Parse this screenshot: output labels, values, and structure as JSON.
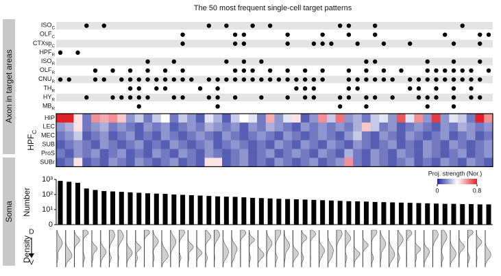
{
  "chart_data": {
    "type": "pattern-matrix",
    "title": "The 50 most frequent single-cell target patterns",
    "side_labels": {
      "axon": "Axon in target areas",
      "soma": "Soma"
    },
    "patterns": {
      "rows": [
        {
          "name": "ISO",
          "sub": "C",
          "cols": [
            3,
            5,
            17,
            19,
            22,
            24,
            32,
            33,
            36,
            46
          ]
        },
        {
          "name": "OLF",
          "sub": "C",
          "cols": [
            14,
            20,
            21,
            26,
            30,
            33,
            36,
            44,
            48,
            49
          ]
        },
        {
          "name": "CTXsp",
          "sub": "C",
          "cols": [
            14,
            20,
            21,
            26,
            29,
            30,
            31,
            34,
            37,
            40,
            45,
            48
          ]
        },
        {
          "name": "HPF",
          "sub": "R",
          "cols": [
            0,
            2
          ]
        },
        {
          "name": "ISO",
          "sub": "R",
          "cols": [
            10,
            13,
            19,
            21,
            23,
            35,
            36,
            42,
            45,
            48
          ]
        },
        {
          "name": "OLF",
          "sub": "R",
          "cols": [
            4,
            6,
            8,
            10,
            12,
            14,
            20,
            21,
            22,
            24,
            26,
            28,
            30,
            33,
            35,
            37,
            39,
            42,
            43,
            44,
            45,
            46,
            47,
            49
          ]
        },
        {
          "name": "CNU",
          "sub": "R",
          "cols": [
            0,
            1,
            4,
            5,
            7,
            8,
            9,
            10,
            11,
            12,
            13,
            14,
            15,
            17,
            18,
            19,
            20,
            21,
            22,
            23,
            24,
            25,
            26,
            27,
            28,
            29,
            30,
            33,
            34,
            35,
            36,
            37,
            38,
            40,
            41,
            42,
            43,
            44,
            45,
            46,
            47,
            48
          ]
        },
        {
          "name": "TH",
          "sub": "R",
          "cols": [
            8,
            9,
            11,
            12,
            16,
            18,
            27,
            28,
            29,
            33,
            34,
            40,
            41,
            43,
            45,
            47
          ]
        },
        {
          "name": "HY",
          "sub": "R",
          "cols": [
            3,
            6,
            7,
            8,
            9,
            10,
            13,
            14,
            17,
            18,
            20,
            23,
            26,
            28,
            29,
            32,
            33,
            35,
            36,
            38,
            41,
            42,
            43,
            45,
            47,
            48
          ]
        },
        {
          "name": "MB",
          "sub": "R",
          "cols": [
            9,
            18,
            32,
            35,
            42,
            45
          ]
        }
      ]
    },
    "heatmap": {
      "title": "HPF",
      "title_sub": "C",
      "colorbar_label": "Proj. strength (Nor.)",
      "clim": [
        0,
        0.8
      ],
      "cticks": [
        0,
        0.8
      ],
      "rows": [
        {
          "name": "HIP",
          "values": [
            0.8,
            0.8,
            0.45,
            0.15,
            0.6,
            0.55,
            0.6,
            0.5,
            0.2,
            0.3,
            0.15,
            0.3,
            0.4,
            0.15,
            0.3,
            0.2,
            0.1,
            0.35,
            0.25,
            0.1,
            0.3,
            0.4,
            0.35,
            0.15,
            0.55,
            0.2,
            0.35,
            0.45,
            0.1,
            0.2,
            0.6,
            0.3,
            0.65,
            0.2,
            0.25,
            0.15,
            0.3,
            0.35,
            0.2,
            0.7,
            0.35,
            0.6,
            0.2,
            0.75,
            0.2,
            0.35,
            0.3,
            0.15,
            0.8,
            0.6
          ]
        },
        {
          "name": "LEC",
          "values": [
            0.2,
            0.25,
            0.45,
            0.15,
            0.2,
            0.25,
            0.15,
            0.2,
            0.15,
            0.1,
            0.2,
            0.15,
            0.2,
            0.1,
            0.15,
            0.2,
            0.15,
            0.25,
            0.2,
            0.15,
            0.2,
            0.1,
            0.2,
            0.15,
            0.25,
            0.2,
            0.15,
            0.1,
            0.2,
            0.15,
            0.2,
            0.15,
            0.2,
            0.15,
            0.25,
            0.5,
            0.3,
            0.15,
            0.2,
            0.1,
            0.15,
            0.2,
            0.15,
            0.1,
            0.2,
            0.15,
            0.25,
            0.2,
            0.15,
            0.2
          ]
        },
        {
          "name": "MEC",
          "values": [
            0.15,
            0.2,
            0.3,
            0.1,
            0.15,
            0.2,
            0.1,
            0.15,
            0.2,
            0.1,
            0.15,
            0.1,
            0.2,
            0.15,
            0.1,
            0.15,
            0.2,
            0.15,
            0.1,
            0.2,
            0.15,
            0.1,
            0.15,
            0.2,
            0.15,
            0.1,
            0.2,
            0.15,
            0.1,
            0.15,
            0.2,
            0.15,
            0.1,
            0.2,
            0.3,
            0.15,
            0.1,
            0.2,
            0.15,
            0.1,
            0.2,
            0.15,
            0.1,
            0.15,
            0.2,
            0.1,
            0.15,
            0.2,
            0.1,
            0.15
          ]
        },
        {
          "name": "SUB",
          "values": [
            0.1,
            0.15,
            0.2,
            0.15,
            0.1,
            0.2,
            0.15,
            0.1,
            0.15,
            0.2,
            0.1,
            0.15,
            0.1,
            0.2,
            0.15,
            0.1,
            0.15,
            0.2,
            0.1,
            0.15,
            0.2,
            0.15,
            0.1,
            0.15,
            0.1,
            0.2,
            0.15,
            0.1,
            0.2,
            0.15,
            0.1,
            0.2,
            0.15,
            0.1,
            0.2,
            0.15,
            0.1,
            0.15,
            0.2,
            0.1,
            0.15,
            0.1,
            0.2,
            0.15,
            0.1,
            0.2,
            0.15,
            0.1,
            0.15,
            0.2
          ]
        },
        {
          "name": "ProS",
          "values": [
            0.15,
            0.1,
            0.2,
            0.15,
            0.2,
            0.1,
            0.15,
            0.2,
            0.1,
            0.15,
            0.1,
            0.2,
            0.15,
            0.1,
            0.2,
            0.15,
            0.1,
            0.2,
            0.15,
            0.1,
            0.15,
            0.2,
            0.1,
            0.15,
            0.2,
            0.1,
            0.15,
            0.2,
            0.15,
            0.1,
            0.2,
            0.15,
            0.1,
            0.25,
            0.15,
            0.1,
            0.2,
            0.15,
            0.1,
            0.2,
            0.15,
            0.1,
            0.2,
            0.15,
            0.1,
            0.15,
            0.2,
            0.1,
            0.15,
            0.2
          ]
        },
        {
          "name": "SUBr",
          "values": [
            0.1,
            0.15,
            0.45,
            0.1,
            0.15,
            0.1,
            0.2,
            0.15,
            0.1,
            0.2,
            0.15,
            0.1,
            0.15,
            0.2,
            0.1,
            0.15,
            0.1,
            0.45,
            0.45,
            0.1,
            0.15,
            0.2,
            0.1,
            0.15,
            0.1,
            0.2,
            0.15,
            0.1,
            0.15,
            0.2,
            0.1,
            0.15,
            0.2,
            0.6,
            0.15,
            0.1,
            0.2,
            0.15,
            0.1,
            0.15,
            0.2,
            0.1,
            0.15,
            0.1,
            0.2,
            0.15,
            0.1,
            0.2,
            0.15,
            0.1
          ]
        }
      ]
    },
    "bars": {
      "ylabel": "Number",
      "log_scale": true,
      "color": "#000000",
      "ylim": [
        1,
        1000
      ],
      "yticks": [
        {
          "value": 1,
          "label": "0"
        },
        {
          "value": 10,
          "label": "10¹"
        },
        {
          "value": 100,
          "label": "10²"
        },
        {
          "value": 1000,
          "label": "10³"
        }
      ],
      "values": [
        800,
        700,
        600,
        250,
        200,
        170,
        160,
        150,
        140,
        130,
        120,
        115,
        110,
        100,
        95,
        90,
        85,
        80,
        75,
        72,
        70,
        65,
        60,
        58,
        55,
        52,
        50,
        48,
        46,
        44,
        42,
        40,
        38,
        36,
        35,
        34,
        32,
        31,
        30,
        29,
        28,
        27,
        26,
        25,
        24,
        24,
        23,
        23,
        22,
        22
      ]
    },
    "density": {
      "ylabel": "Density",
      "top": "D",
      "bottom": "V"
    }
  }
}
